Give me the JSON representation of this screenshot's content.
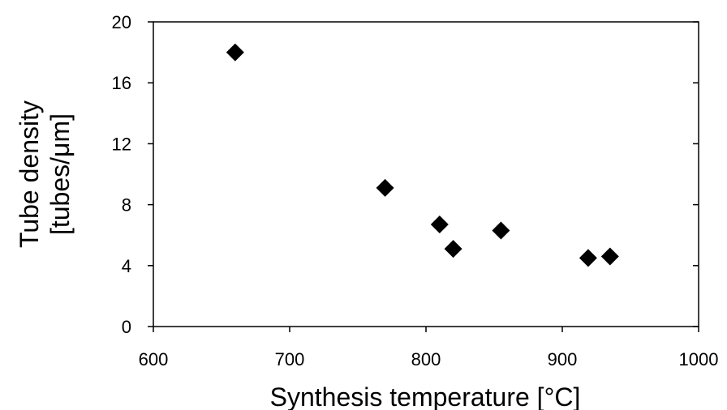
{
  "chart_data": {
    "type": "scatter",
    "title": "",
    "xlabel": "Synthesis temperature [°C]",
    "ylabel_lines": [
      "Tube density",
      "[tubes/μm]"
    ],
    "xlim": [
      600,
      1000
    ],
    "ylim": [
      0,
      20
    ],
    "xticks": [
      600,
      700,
      800,
      900,
      1000
    ],
    "yticks": [
      0,
      4,
      8,
      12,
      16,
      20
    ],
    "xtick_labels": [
      "600",
      "700",
      "800",
      "900",
      "1000"
    ],
    "ytick_labels": [
      "0",
      "4",
      "8",
      "12",
      "16",
      "20"
    ],
    "grid": false,
    "marker": "diamond",
    "marker_color": "#000000",
    "series": [
      {
        "x": [
          660,
          770,
          810,
          820,
          855,
          919,
          935
        ],
        "y": [
          18.0,
          9.1,
          6.7,
          5.1,
          6.3,
          4.5,
          4.6
        ]
      }
    ]
  }
}
